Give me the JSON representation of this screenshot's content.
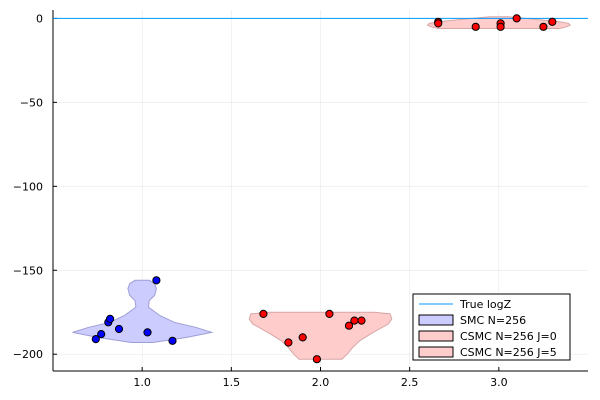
{
  "chart_data": {
    "type": "violin",
    "title": "",
    "xlabel": "",
    "ylabel": "",
    "xlim": [
      0.5,
      3.5
    ],
    "ylim": [
      -210,
      5
    ],
    "x_ticks": [
      1.0,
      1.5,
      2.0,
      2.5,
      3.0
    ],
    "x_tick_labels": [
      "1.0",
      "1.5",
      "2.0",
      "2.5",
      "3.0"
    ],
    "y_ticks": [
      0,
      -50,
      -100,
      -150,
      -200
    ],
    "y_tick_labels": [
      "0",
      "−50",
      "−100",
      "−150",
      "−200"
    ],
    "grid": true,
    "legend_position": "bottom-right",
    "reference_line": {
      "name": "True logZ",
      "y": 0,
      "color": "#009AFA"
    },
    "series": [
      {
        "name": "SMC N=256",
        "x": 1,
        "fill": "#CCCCFF",
        "stroke": "#9E9ED6",
        "point_color": "#0000FF",
        "violin_profile": [
          [
            -193,
            0.06
          ],
          [
            -190,
            0.25
          ],
          [
            -187,
            0.39
          ],
          [
            -184,
            0.3
          ],
          [
            -181,
            0.18
          ],
          [
            -177,
            0.1
          ],
          [
            -172,
            0.035
          ],
          [
            -168,
            0.04
          ],
          [
            -165,
            0.07
          ],
          [
            -161,
            0.08
          ],
          [
            -158,
            0.07
          ],
          [
            -156,
            0.04
          ]
        ],
        "points": [
          [
            0.74,
            -191
          ],
          [
            0.77,
            -188
          ],
          [
            0.81,
            -181
          ],
          [
            0.82,
            -179
          ],
          [
            0.87,
            -185
          ],
          [
            1.03,
            -187
          ],
          [
            1.08,
            -156
          ],
          [
            1.17,
            -192
          ]
        ]
      },
      {
        "name": "CSMC N=256 J=0",
        "x": 2,
        "fill": "#FFCCCC",
        "stroke": "#D6A6A6",
        "point_color": "#FF0000",
        "violin_profile": [
          [
            -203,
            0.12
          ],
          [
            -200,
            0.15
          ],
          [
            -196,
            0.18
          ],
          [
            -192,
            0.22
          ],
          [
            -188,
            0.28
          ],
          [
            -185,
            0.33
          ],
          [
            -182,
            0.38
          ],
          [
            -179,
            0.4
          ],
          [
            -176,
            0.39
          ],
          [
            -175,
            0.3
          ]
        ],
        "points": [
          [
            1.68,
            -176
          ],
          [
            1.82,
            -193
          ],
          [
            1.9,
            -190
          ],
          [
            1.98,
            -203
          ],
          [
            2.05,
            -176
          ],
          [
            2.16,
            -183
          ],
          [
            2.19,
            -180
          ],
          [
            2.23,
            -180
          ]
        ]
      },
      {
        "name": "CSMC N=256 J=5",
        "x": 3,
        "fill": "#FFCCCC",
        "stroke": "#D6A6A6",
        "point_color": "#FF0000",
        "violin_profile": [
          [
            -6,
            0.34
          ],
          [
            -5,
            0.38
          ],
          [
            -4,
            0.4
          ],
          [
            -3,
            0.39
          ],
          [
            -2,
            0.34
          ],
          [
            -1,
            0.25
          ],
          [
            0,
            0.15
          ],
          [
            1,
            0.05
          ]
        ],
        "points": [
          [
            2.66,
            -2
          ],
          [
            2.66,
            -3
          ],
          [
            2.87,
            -5
          ],
          [
            3.01,
            -3
          ],
          [
            3.01,
            -5
          ],
          [
            3.1,
            0
          ],
          [
            3.25,
            -5
          ],
          [
            3.3,
            -2
          ]
        ]
      }
    ]
  }
}
